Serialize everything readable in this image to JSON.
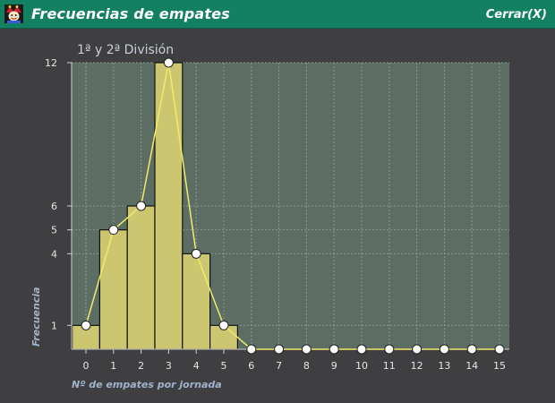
{
  "window": {
    "title": "Frecuencias de empates",
    "close_label": "Cerrar(X)",
    "titlebar_color": "#138061"
  },
  "icons": {
    "app": "jester-icon"
  },
  "colors": {
    "background": "#3f3f41",
    "plot_area": "#5c6e63",
    "bar_fill": "#cdc670",
    "line": "#f2ea6a",
    "marker": "#ffffff"
  },
  "chart_data": {
    "type": "bar",
    "title": "1ª y 2ª División",
    "xlabel": "Nº de empates por jornada",
    "ylabel": "Frecuencia",
    "categories": [
      "0",
      "1",
      "2",
      "3",
      "4",
      "5",
      "6",
      "7",
      "8",
      "9",
      "10",
      "11",
      "12",
      "13",
      "14",
      "15"
    ],
    "values": [
      1,
      5,
      6,
      12,
      4,
      1,
      0,
      0,
      0,
      0,
      0,
      0,
      0,
      0,
      0,
      0
    ],
    "overlay": "line-with-markers",
    "y_ticks": [
      1,
      4,
      5,
      6,
      12
    ],
    "ylim": [
      0,
      12
    ],
    "xlim": [
      0,
      15
    ],
    "grid": true
  }
}
